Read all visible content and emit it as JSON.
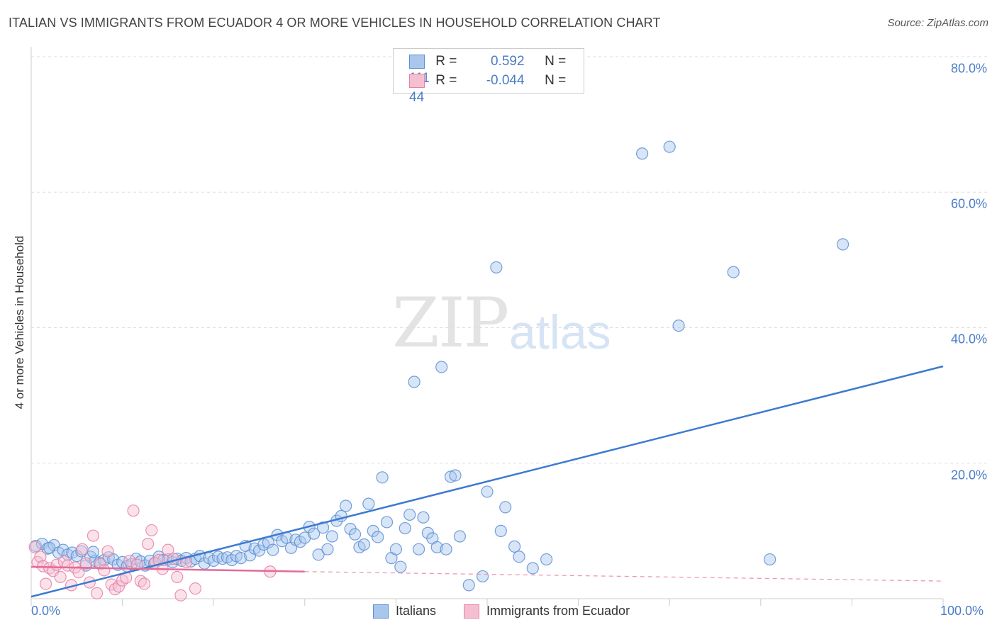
{
  "chart_data": {
    "type": "scatter",
    "title": "ITALIAN VS IMMIGRANTS FROM ECUADOR 4 OR MORE VEHICLES IN HOUSEHOLD CORRELATION CHART",
    "source": "Source: ZipAtlas.com",
    "ylabel": "4 or more Vehicles in Household",
    "xlabel": "",
    "xlim": [
      0,
      100
    ],
    "ylim": [
      0,
      80
    ],
    "x_tick_labels": [
      "0.0%",
      "100.0%"
    ],
    "y_tick_labels": [
      "20.0%",
      "40.0%",
      "60.0%",
      "80.0%"
    ],
    "y_ticks": [
      20,
      40,
      60,
      80
    ],
    "watermark": {
      "part1": "ZIP",
      "part2": "atlas"
    },
    "colors": {
      "italians": "#5b8fd6",
      "italians_fill": "#a9c6ec",
      "ecuador": "#e97fa5",
      "ecuador_fill": "#f5bfd2",
      "grid": "#dddddd"
    },
    "legend": [
      {
        "r_label": "R =",
        "r_value": "0.592",
        "n_label": "N =",
        "n_value": "111"
      },
      {
        "r_label": "R =",
        "r_value": "-0.044",
        "n_label": "N =",
        "n_value": "44"
      }
    ],
    "series": [
      {
        "name": "Italians",
        "trend": {
          "x0": 0,
          "y0": 0.3,
          "x1": 100,
          "y1": 34.3
        },
        "points": [
          [
            0.5,
            7.8
          ],
          [
            1.2,
            8.1
          ],
          [
            1.8,
            7.4
          ],
          [
            2.5,
            7.9
          ],
          [
            3.0,
            6.8
          ],
          [
            3.5,
            7.2
          ],
          [
            4.0,
            6.5
          ],
          [
            4.5,
            6.8
          ],
          [
            5.0,
            6.3
          ],
          [
            5.5,
            7.0
          ],
          [
            6.0,
            4.9
          ],
          [
            6.5,
            6.2
          ],
          [
            7.0,
            5.6
          ],
          [
            7.5,
            5.3
          ],
          [
            8.0,
            5.7
          ],
          [
            8.5,
            6.1
          ],
          [
            9.0,
            5.8
          ],
          [
            9.5,
            5.0
          ],
          [
            10.0,
            5.4
          ],
          [
            10.5,
            4.8
          ],
          [
            11.0,
            5.1
          ],
          [
            11.5,
            5.9
          ],
          [
            12.0,
            5.5
          ],
          [
            12.5,
            4.9
          ],
          [
            13.0,
            5.6
          ],
          [
            13.5,
            5.2
          ],
          [
            14.0,
            6.2
          ],
          [
            14.5,
            5.7
          ],
          [
            15.0,
            5.8
          ],
          [
            15.5,
            5.4
          ],
          [
            16.0,
            5.9
          ],
          [
            16.5,
            5.6
          ],
          [
            17.0,
            6.0
          ],
          [
            17.5,
            5.5
          ],
          [
            18.0,
            5.9
          ],
          [
            18.5,
            6.3
          ],
          [
            19.0,
            5.2
          ],
          [
            19.5,
            6.0
          ],
          [
            20.0,
            5.6
          ],
          [
            20.5,
            6.2
          ],
          [
            21.0,
            5.9
          ],
          [
            21.5,
            6.1
          ],
          [
            22.0,
            5.7
          ],
          [
            22.5,
            6.3
          ],
          [
            23.0,
            6.0
          ],
          [
            23.5,
            7.8
          ],
          [
            24.0,
            6.4
          ],
          [
            24.5,
            7.4
          ],
          [
            25.0,
            7.1
          ],
          [
            25.5,
            8.0
          ],
          [
            26.0,
            8.3
          ],
          [
            26.5,
            7.2
          ],
          [
            27.0,
            9.4
          ],
          [
            27.5,
            8.5
          ],
          [
            28.0,
            9.0
          ],
          [
            28.5,
            7.5
          ],
          [
            29.0,
            8.7
          ],
          [
            29.5,
            8.4
          ],
          [
            30.0,
            9.0
          ],
          [
            30.5,
            10.6
          ],
          [
            31.0,
            9.6
          ],
          [
            31.5,
            6.5
          ],
          [
            32.0,
            10.5
          ],
          [
            32.5,
            7.3
          ],
          [
            33.0,
            9.2
          ],
          [
            33.5,
            11.5
          ],
          [
            34.0,
            12.2
          ],
          [
            34.5,
            13.7
          ],
          [
            35.0,
            10.3
          ],
          [
            35.5,
            9.5
          ],
          [
            36.0,
            7.6
          ],
          [
            36.5,
            8.0
          ],
          [
            37.0,
            14.0
          ],
          [
            37.5,
            10.0
          ],
          [
            38.0,
            9.1
          ],
          [
            38.5,
            17.9
          ],
          [
            39.0,
            11.3
          ],
          [
            39.5,
            6.0
          ],
          [
            40.0,
            7.3
          ],
          [
            40.5,
            4.7
          ],
          [
            41.0,
            10.4
          ],
          [
            41.5,
            12.4
          ],
          [
            42.0,
            32.0
          ],
          [
            42.5,
            7.3
          ],
          [
            43.0,
            12.0
          ],
          [
            43.5,
            9.7
          ],
          [
            44.0,
            8.9
          ],
          [
            44.5,
            7.6
          ],
          [
            45.0,
            34.2
          ],
          [
            45.5,
            7.3
          ],
          [
            46.0,
            18.0
          ],
          [
            46.5,
            18.2
          ],
          [
            47.0,
            9.2
          ],
          [
            48.0,
            2.0
          ],
          [
            49.5,
            3.3
          ],
          [
            50.0,
            15.8
          ],
          [
            51.0,
            48.9
          ],
          [
            51.5,
            10.0
          ],
          [
            52.0,
            13.5
          ],
          [
            53.0,
            7.7
          ],
          [
            53.5,
            6.2
          ],
          [
            55.0,
            4.5
          ],
          [
            56.5,
            5.8
          ],
          [
            67.0,
            65.7
          ],
          [
            70.0,
            66.7
          ],
          [
            71.0,
            40.3
          ],
          [
            77.0,
            48.2
          ],
          [
            81.0,
            5.8
          ],
          [
            89.0,
            52.3
          ],
          [
            2.0,
            7.5
          ],
          [
            6.8,
            6.9
          ]
        ]
      },
      {
        "name": "Immigrants from Ecuador",
        "trend": {
          "x0": 0,
          "y0": 4.7,
          "x1": 30,
          "y1": 4.0
        },
        "trend_dashed": {
          "x0": 30,
          "y0": 4.0,
          "x1": 100,
          "y1": 2.6
        },
        "points": [
          [
            0.4,
            7.6
          ],
          [
            0.7,
            5.4
          ],
          [
            1.0,
            6.2
          ],
          [
            1.3,
            4.8
          ],
          [
            1.6,
            2.2
          ],
          [
            2.0,
            4.5
          ],
          [
            2.4,
            4.1
          ],
          [
            2.8,
            5.0
          ],
          [
            3.2,
            3.2
          ],
          [
            3.6,
            5.5
          ],
          [
            4.0,
            4.9
          ],
          [
            4.4,
            2.0
          ],
          [
            4.8,
            4.6
          ],
          [
            5.2,
            3.9
          ],
          [
            5.6,
            7.3
          ],
          [
            6.0,
            5.2
          ],
          [
            6.4,
            2.4
          ],
          [
            6.8,
            9.3
          ],
          [
            7.2,
            0.8
          ],
          [
            7.6,
            5.1
          ],
          [
            8.0,
            4.2
          ],
          [
            8.4,
            7.0
          ],
          [
            8.8,
            2.1
          ],
          [
            9.2,
            1.4
          ],
          [
            9.6,
            1.8
          ],
          [
            10.0,
            2.7
          ],
          [
            10.4,
            3.1
          ],
          [
            10.8,
            5.6
          ],
          [
            11.2,
            13.0
          ],
          [
            11.6,
            5.0
          ],
          [
            12.0,
            2.6
          ],
          [
            12.4,
            2.2
          ],
          [
            12.8,
            8.1
          ],
          [
            13.2,
            10.1
          ],
          [
            13.6,
            5.3
          ],
          [
            14.0,
            5.7
          ],
          [
            14.4,
            4.4
          ],
          [
            15.0,
            7.2
          ],
          [
            15.6,
            5.9
          ],
          [
            16.0,
            3.2
          ],
          [
            16.4,
            0.5
          ],
          [
            17.0,
            5.4
          ],
          [
            18.0,
            1.5
          ],
          [
            26.2,
            4.0
          ]
        ]
      }
    ]
  }
}
